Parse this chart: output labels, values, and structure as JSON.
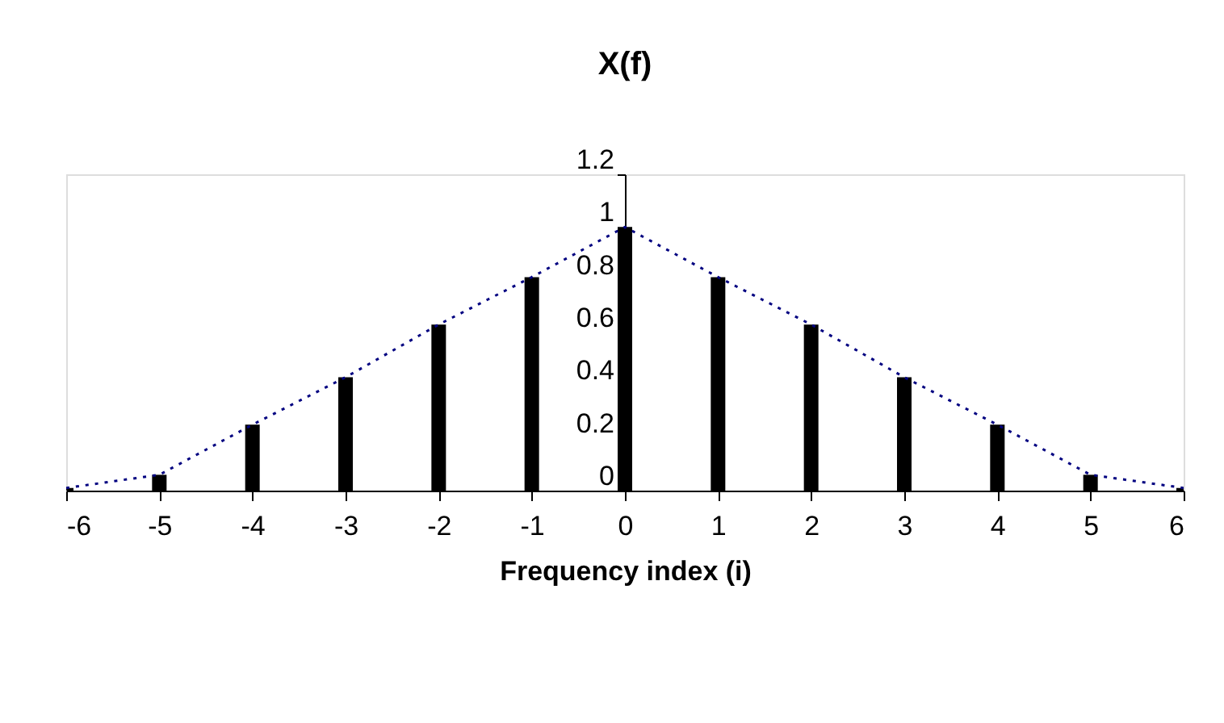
{
  "chart_data": {
    "type": "bar",
    "title": "X(f)",
    "xlabel": "Frequency index (i)",
    "x": [
      -6,
      -5,
      -4,
      -3,
      -2,
      -1,
      0,
      1,
      2,
      3,
      4,
      5,
      6
    ],
    "series": [
      {
        "color": "#000000",
        "values": [
          0.01,
          0.06,
          0.25,
          0.43,
          0.63,
          0.81,
          1.0,
          0.81,
          0.63,
          0.43,
          0.25,
          0.06,
          0.01
        ]
      },
      {
        "type": "line",
        "color": "#000080",
        "line_style": "dotted",
        "values": [
          0.01,
          0.06,
          0.25,
          0.43,
          0.63,
          0.81,
          1.0,
          0.81,
          0.63,
          0.43,
          0.25,
          0.06,
          0.01
        ]
      }
    ],
    "xlim": [
      -6,
      6
    ],
    "xticks": [
      -6,
      -5,
      -4,
      -3,
      -2,
      -1,
      0,
      1,
      2,
      3,
      4,
      5,
      6
    ],
    "ylim": [
      0,
      1.2
    ],
    "yticks": [
      0,
      0.2,
      0.4,
      0.6,
      0.8,
      1,
      1.2
    ],
    "grid": false
  }
}
